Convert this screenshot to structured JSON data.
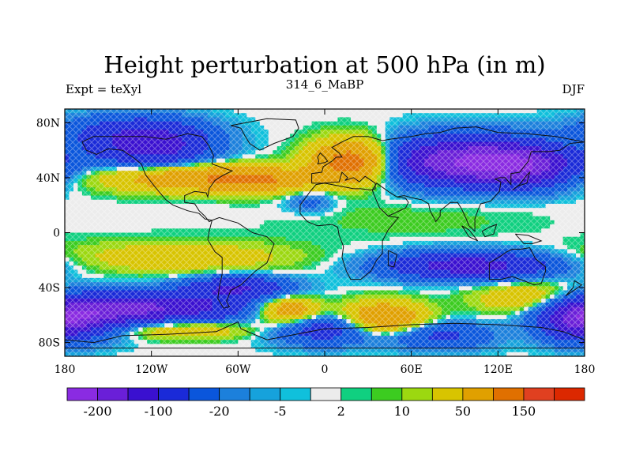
{
  "chart_data": {
    "type": "heatmap",
    "title": "Height perturbation at 500 hPa (in m)",
    "left_string": "Expt = teXyl",
    "center_string": "314_6_MaBP",
    "right_string": "DJF",
    "xlabel": "",
    "ylabel": "",
    "xlim": [
      -180,
      180
    ],
    "ylim": [
      -90,
      90
    ],
    "x_ticks": [
      {
        "value": -180,
        "label": "180"
      },
      {
        "value": -120,
        "label": "120W"
      },
      {
        "value": -60,
        "label": "60W"
      },
      {
        "value": 0,
        "label": "0"
      },
      {
        "value": 60,
        "label": "60E"
      },
      {
        "value": 120,
        "label": "120E"
      },
      {
        "value": 180,
        "label": "180"
      }
    ],
    "y_ticks": [
      {
        "value": 80,
        "label": "80N"
      },
      {
        "value": 40,
        "label": "40N"
      },
      {
        "value": 0,
        "label": "0"
      },
      {
        "value": -40,
        "label": "40S"
      },
      {
        "value": -80,
        "label": "80S"
      }
    ],
    "colorbar": {
      "levels": [
        -200,
        -150,
        -100,
        -50,
        -20,
        -10,
        -5,
        -2,
        2,
        5,
        10,
        20,
        50,
        100,
        150,
        200
      ],
      "colors": [
        "#8a2be2",
        "#6a1fd8",
        "#3a10d0",
        "#1a2ad8",
        "#0a56dc",
        "#1c80dc",
        "#16a2dc",
        "#10c0dc",
        "#ececec",
        "#10d080",
        "#3ccc20",
        "#9cd810",
        "#d8c400",
        "#e0a000",
        "#e07000",
        "#e04020",
        "#dc2800"
      ],
      "labels": [
        {
          "level": -200,
          "text": "-200"
        },
        {
          "level": -100,
          "text": "-100"
        },
        {
          "level": -20,
          "text": "-20"
        },
        {
          "level": -5,
          "text": "-5"
        },
        {
          "level": 2,
          "text": "2"
        },
        {
          "level": 10,
          "text": "10"
        },
        {
          "level": 50,
          "text": "50"
        },
        {
          "level": 150,
          "text": "150"
        }
      ]
    },
    "field_features": [
      {
        "lon": -120,
        "lat": 63,
        "value": -130,
        "sigma_lon": 28,
        "sigma_lat": 11
      },
      {
        "lon": -140,
        "lat": 75,
        "value": -40,
        "sigma_lon": 35,
        "sigma_lat": 8
      },
      {
        "lon": 95,
        "lat": 52,
        "value": -190,
        "sigma_lon": 40,
        "sigma_lat": 12
      },
      {
        "lon": 140,
        "lat": 48,
        "value": -120,
        "sigma_lon": 25,
        "sigma_lat": 10
      },
      {
        "lon": 20,
        "lat": 52,
        "value": 150,
        "sigma_lon": 20,
        "sigma_lat": 11
      },
      {
        "lon": -90,
        "lat": 40,
        "value": 95,
        "sigma_lon": 45,
        "sigma_lat": 7
      },
      {
        "lon": -40,
        "lat": 38,
        "value": 60,
        "sigma_lon": 25,
        "sigma_lat": 6
      },
      {
        "lon": -10,
        "lat": 23,
        "value": -30,
        "sigma_lon": 12,
        "sigma_lat": 6
      },
      {
        "lon": 100,
        "lat": -24,
        "value": -130,
        "sigma_lon": 40,
        "sigma_lat": 7
      },
      {
        "lon": -100,
        "lat": -18,
        "value": 40,
        "sigma_lon": 55,
        "sigma_lat": 8
      },
      {
        "lon": -120,
        "lat": -55,
        "value": -150,
        "sigma_lon": 45,
        "sigma_lat": 8
      },
      {
        "lon": -60,
        "lat": -40,
        "value": -100,
        "sigma_lon": 25,
        "sigma_lat": 6
      },
      {
        "lon": -170,
        "lat": -62,
        "value": -100,
        "sigma_lon": 25,
        "sigma_lat": 10
      },
      {
        "lon": -100,
        "lat": -70,
        "value": 55,
        "sigma_lon": 35,
        "sigma_lat": 5
      },
      {
        "lon": -25,
        "lat": -57,
        "value": 100,
        "sigma_lon": 15,
        "sigma_lat": 7
      },
      {
        "lon": 40,
        "lat": -62,
        "value": 110,
        "sigma_lon": 20,
        "sigma_lat": 8
      },
      {
        "lon": 0,
        "lat": -70,
        "value": -80,
        "sigma_lon": 25,
        "sigma_lat": 8
      },
      {
        "lon": 80,
        "lat": -75,
        "value": -60,
        "sigma_lon": 25,
        "sigma_lat": 7
      },
      {
        "lon": 140,
        "lat": -48,
        "value": 50,
        "sigma_lon": 25,
        "sigma_lat": 8
      },
      {
        "lon": 175,
        "lat": -65,
        "value": -90,
        "sigma_lon": 18,
        "sigma_lat": 10
      },
      {
        "lon": 60,
        "lat": 10,
        "value": 8,
        "sigma_lon": 60,
        "sigma_lat": 10
      }
    ],
    "coastlines": [
      [
        [
          -168,
          66
        ],
        [
          -160,
          70
        ],
        [
          -140,
          70
        ],
        [
          -125,
          70
        ],
        [
          -110,
          68
        ],
        [
          -95,
          72
        ],
        [
          -85,
          70
        ],
        [
          -80,
          63
        ],
        [
          -77,
          56
        ],
        [
          -78,
          50
        ],
        [
          -70,
          47
        ],
        [
          -64,
          45
        ],
        [
          -70,
          42
        ],
        [
          -76,
          38
        ],
        [
          -80,
          32
        ],
        [
          -81,
          26
        ],
        [
          -82,
          29
        ],
        [
          -90,
          30
        ],
        [
          -97,
          27
        ],
        [
          -97,
          22
        ],
        [
          -90,
          21
        ],
        [
          -87,
          16
        ],
        [
          -83,
          12
        ],
        [
          -80,
          8
        ],
        [
          -78,
          9
        ]
      ],
      [
        [
          -78,
          9
        ],
        [
          -80,
          1
        ],
        [
          -81,
          -5
        ],
        [
          -76,
          -14
        ],
        [
          -71,
          -18
        ],
        [
          -71,
          -30
        ],
        [
          -73,
          -40
        ],
        [
          -74,
          -48
        ],
        [
          -70,
          -55
        ],
        [
          -66,
          -54
        ],
        [
          -68,
          -50
        ],
        [
          -65,
          -42
        ],
        [
          -58,
          -38
        ],
        [
          -48,
          -28
        ],
        [
          -40,
          -22
        ],
        [
          -35,
          -8
        ],
        [
          -40,
          -3
        ],
        [
          -50,
          0
        ],
        [
          -60,
          7
        ],
        [
          -73,
          11
        ],
        [
          -78,
          9
        ]
      ],
      [
        [
          -168,
          66
        ],
        [
          -165,
          60
        ],
        [
          -158,
          57
        ],
        [
          -150,
          61
        ],
        [
          -140,
          60
        ],
        [
          -133,
          55
        ],
        [
          -127,
          50
        ],
        [
          -124,
          42
        ],
        [
          -118,
          34
        ],
        [
          -110,
          24
        ],
        [
          -105,
          20
        ],
        [
          -95,
          16
        ],
        [
          -87,
          14
        ],
        [
          -83,
          10
        ],
        [
          -78,
          9
        ]
      ],
      [
        [
          -9,
          36
        ],
        [
          -9,
          43
        ],
        [
          -2,
          44
        ],
        [
          -1,
          48
        ],
        [
          5,
          52
        ],
        [
          8,
          55
        ],
        [
          12,
          55
        ],
        [
          10,
          58
        ],
        [
          5,
          62
        ],
        [
          12,
          66
        ],
        [
          20,
          70
        ],
        [
          30,
          70
        ],
        [
          40,
          67
        ],
        [
          45,
          68
        ],
        [
          60,
          70
        ],
        [
          70,
          72
        ],
        [
          80,
          73
        ],
        [
          90,
          76
        ],
        [
          105,
          77
        ],
        [
          120,
          73
        ],
        [
          140,
          72
        ],
        [
          160,
          70
        ],
        [
          170,
          68
        ],
        [
          180,
          66
        ]
      ],
      [
        [
          -9,
          36
        ],
        [
          -6,
          36
        ],
        [
          -2,
          36
        ],
        [
          10,
          37
        ],
        [
          12,
          44
        ],
        [
          16,
          40
        ],
        [
          14,
          38
        ],
        [
          20,
          40
        ],
        [
          24,
          37
        ],
        [
          28,
          41
        ],
        [
          35,
          36
        ],
        [
          35,
          32
        ],
        [
          32,
          31
        ],
        [
          25,
          32
        ],
        [
          20,
          32
        ],
        [
          10,
          34
        ],
        [
          0,
          36
        ],
        [
          -6,
          35
        ],
        [
          -10,
          30
        ],
        [
          -17,
          20
        ],
        [
          -17,
          14
        ],
        [
          -12,
          8
        ],
        [
          -5,
          5
        ],
        [
          5,
          6
        ],
        [
          9,
          4
        ],
        [
          10,
          -2
        ],
        [
          13,
          -10
        ],
        [
          12,
          -18
        ],
        [
          15,
          -28
        ],
        [
          18,
          -34
        ],
        [
          25,
          -34
        ],
        [
          32,
          -28
        ],
        [
          36,
          -20
        ],
        [
          40,
          -15
        ],
        [
          40,
          -6
        ],
        [
          44,
          2
        ],
        [
          51,
          11
        ],
        [
          44,
          12
        ],
        [
          38,
          18
        ],
        [
          34,
          28
        ],
        [
          33,
          31
        ]
      ],
      [
        [
          33,
          31
        ],
        [
          36,
          36
        ],
        [
          44,
          30
        ],
        [
          50,
          26
        ],
        [
          56,
          25
        ],
        [
          58,
          22
        ],
        [
          56,
          18
        ],
        [
          52,
          16
        ],
        [
          44,
          12
        ]
      ],
      [
        [
          50,
          26
        ],
        [
          55,
          27
        ],
        [
          62,
          25
        ],
        [
          67,
          24
        ],
        [
          72,
          21
        ],
        [
          73,
          16
        ],
        [
          77,
          8
        ],
        [
          80,
          12
        ],
        [
          80,
          16
        ],
        [
          87,
          22
        ],
        [
          92,
          22
        ],
        [
          95,
          17
        ],
        [
          98,
          10
        ],
        [
          100,
          5
        ],
        [
          104,
          1
        ],
        [
          104,
          10
        ],
        [
          106,
          16
        ],
        [
          108,
          21
        ],
        [
          115,
          23
        ],
        [
          121,
          30
        ],
        [
          122,
          37
        ],
        [
          118,
          39
        ],
        [
          121,
          40
        ],
        [
          125,
          40
        ],
        [
          129,
          35
        ],
        [
          129,
          43
        ],
        [
          135,
          44
        ],
        [
          141,
          52
        ],
        [
          143,
          59
        ],
        [
          155,
          59
        ],
        [
          163,
          60
        ],
        [
          170,
          65
        ],
        [
          180,
          66
        ]
      ],
      [
        [
          114,
          -22
        ],
        [
          114,
          -34
        ],
        [
          122,
          -34
        ],
        [
          130,
          -32
        ],
        [
          138,
          -35
        ],
        [
          145,
          -38
        ],
        [
          150,
          -37
        ],
        [
          153,
          -28
        ],
        [
          153,
          -25
        ],
        [
          146,
          -19
        ],
        [
          142,
          -11
        ],
        [
          136,
          -12
        ],
        [
          130,
          -12
        ],
        [
          126,
          -14
        ],
        [
          122,
          -17
        ],
        [
          114,
          -22
        ]
      ],
      [
        [
          95,
          5
        ],
        [
          100,
          2
        ],
        [
          106,
          -6
        ],
        [
          100,
          -3
        ],
        [
          95,
          5
        ]
      ],
      [
        [
          109,
          1
        ],
        [
          114,
          4
        ],
        [
          119,
          6
        ],
        [
          117,
          -1
        ],
        [
          111,
          -3
        ],
        [
          109,
          1
        ]
      ],
      [
        [
          132,
          -1
        ],
        [
          141,
          -2
        ],
        [
          150,
          -6
        ],
        [
          144,
          -8
        ],
        [
          138,
          -8
        ],
        [
          132,
          -1
        ]
      ],
      [
        [
          130,
          31
        ],
        [
          134,
          34
        ],
        [
          140,
          36
        ],
        [
          141,
          40
        ],
        [
          142,
          44
        ],
        [
          140,
          42
        ],
        [
          135,
          35
        ],
        [
          130,
          31
        ]
      ],
      [
        [
          -180,
          -78
        ],
        [
          -160,
          -80
        ],
        [
          -140,
          -75
        ],
        [
          -110,
          -74
        ],
        [
          -90,
          -73
        ],
        [
          -75,
          -72
        ],
        [
          -60,
          -65
        ],
        [
          -58,
          -70
        ],
        [
          -40,
          -78
        ],
        [
          -20,
          -74
        ],
        [
          0,
          -70
        ],
        [
          30,
          -69
        ],
        [
          60,
          -67
        ],
        [
          90,
          -66
        ],
        [
          120,
          -67
        ],
        [
          150,
          -69
        ],
        [
          165,
          -72
        ],
        [
          180,
          -78
        ]
      ],
      [
        [
          -180,
          -84
        ],
        [
          180,
          -84
        ]
      ],
      [
        [
          -45,
          60
        ],
        [
          -52,
          65
        ],
        [
          -55,
          70
        ],
        [
          -58,
          76
        ],
        [
          -65,
          78
        ],
        [
          -40,
          83
        ],
        [
          -20,
          82
        ],
        [
          -18,
          76
        ],
        [
          -22,
          70
        ],
        [
          -35,
          65
        ],
        [
          -45,
          60
        ]
      ],
      [
        [
          -5,
          50
        ],
        [
          0,
          51
        ],
        [
          2,
          52
        ],
        [
          0,
          55
        ],
        [
          -3,
          58
        ],
        [
          -5,
          55
        ],
        [
          -4,
          52
        ],
        [
          -5,
          50
        ]
      ],
      [
        [
          44,
          -13
        ],
        [
          50,
          -16
        ],
        [
          48,
          -25
        ],
        [
          44,
          -24
        ],
        [
          44,
          -13
        ]
      ],
      [
        [
          167,
          -46
        ],
        [
          174,
          -41
        ],
        [
          178,
          -38
        ],
        [
          173,
          -35
        ],
        [
          172,
          -40
        ],
        [
          167,
          -46
        ]
      ]
    ]
  }
}
